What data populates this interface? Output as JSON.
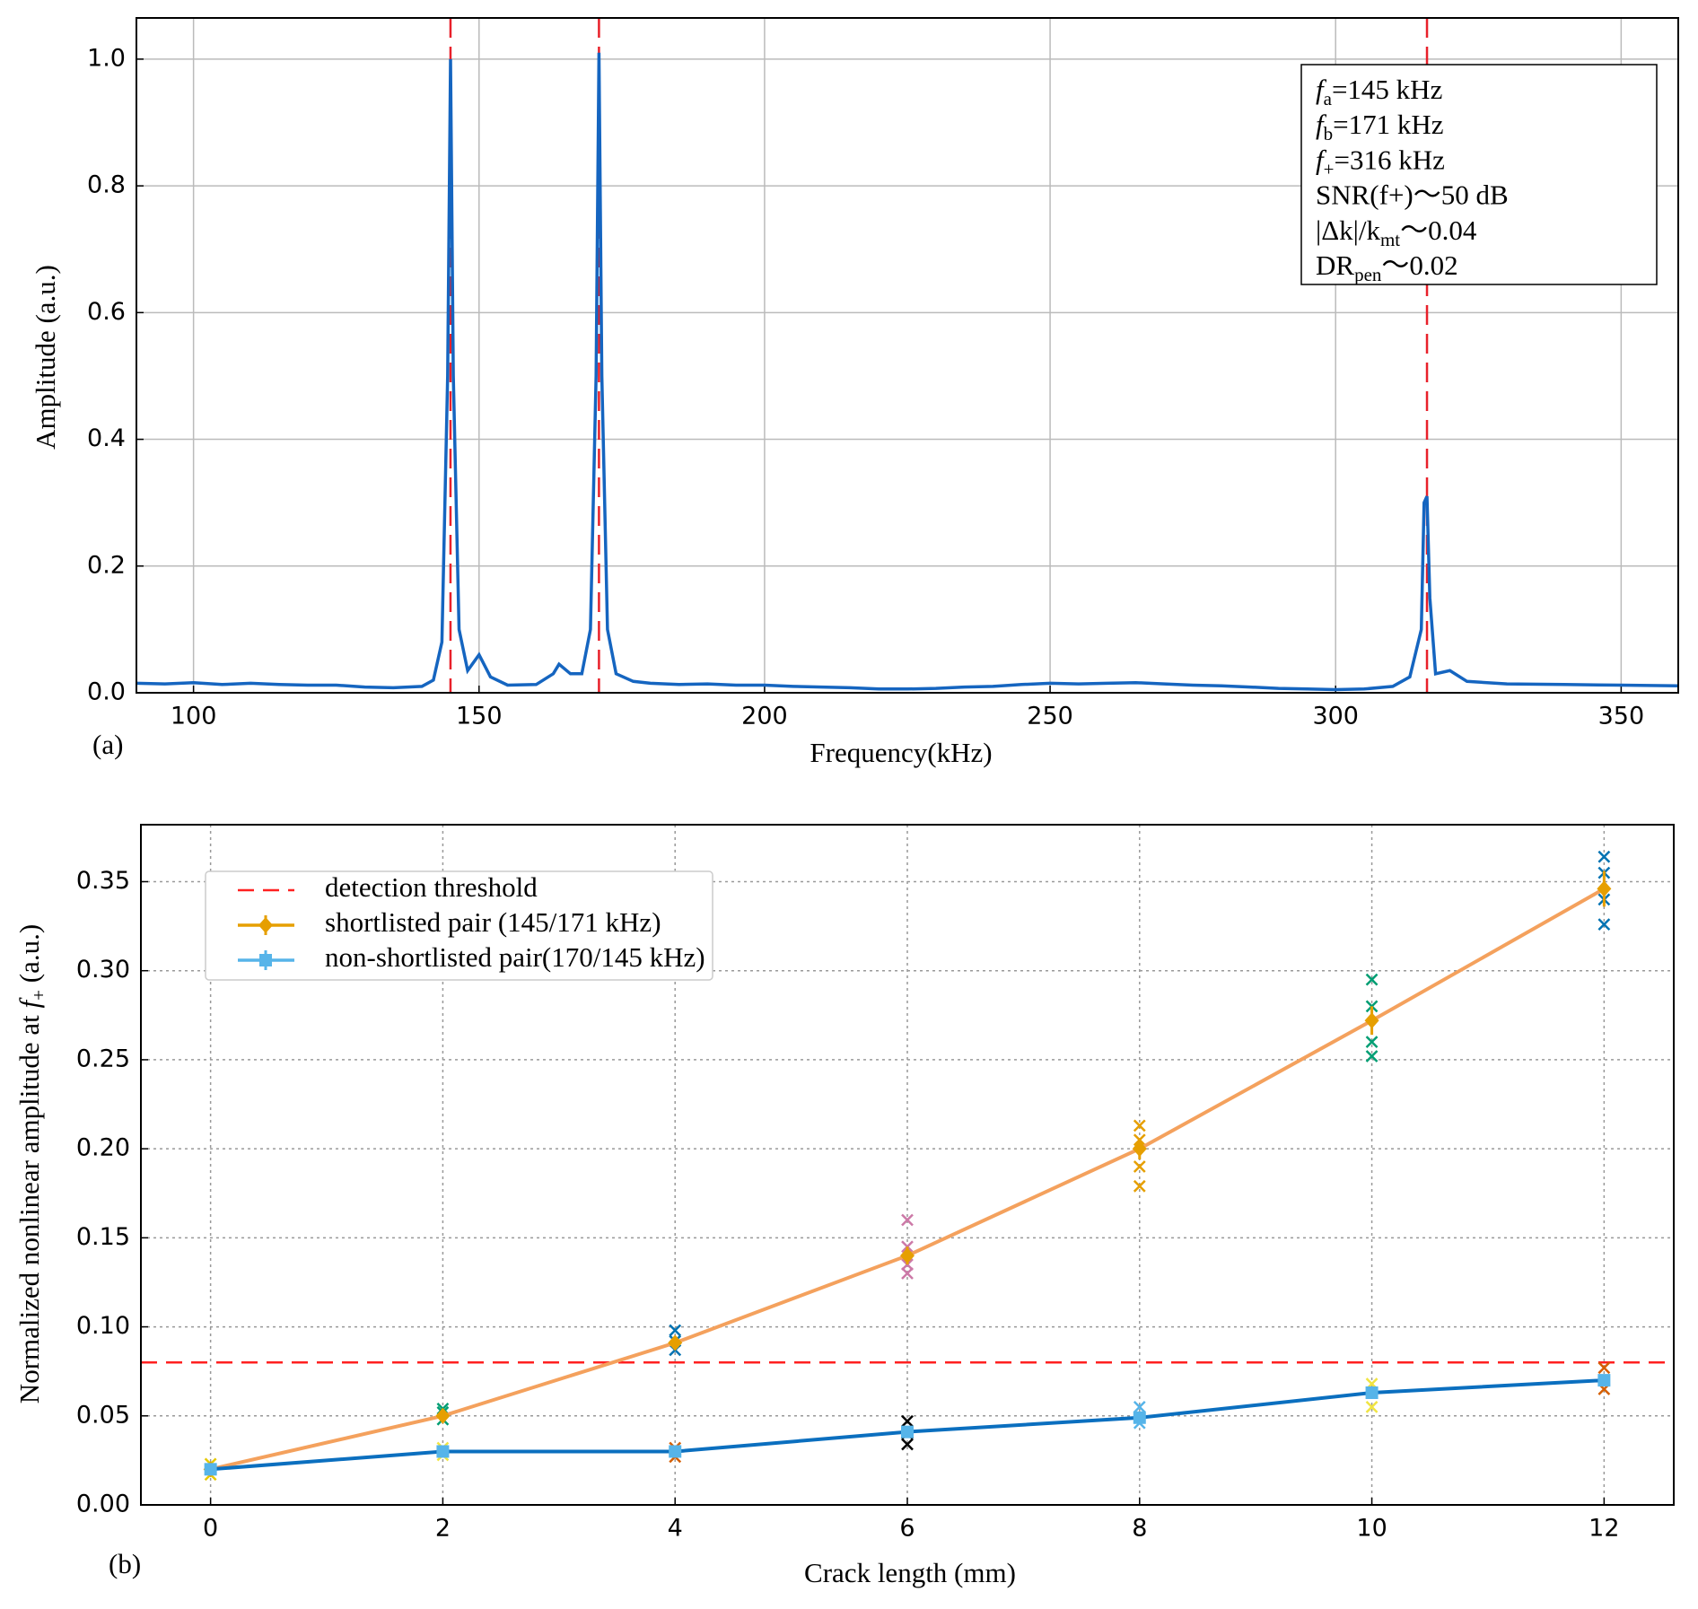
{
  "chart_data": [
    {
      "type": "line",
      "panel_label": "(a)",
      "x_label": "Frequency(kHz)",
      "y_label": "Amplitude (a.u.)",
      "xlim": [
        90,
        360
      ],
      "ylim": [
        0,
        1.065
      ],
      "xticks": [
        100,
        150,
        200,
        250,
        300,
        350
      ],
      "yticks": [
        {
          "value": 0,
          "label": "0.0"
        },
        {
          "value": 0.2,
          "label": "0.2"
        },
        {
          "value": 0.4,
          "label": "0.4"
        },
        {
          "value": 0.6,
          "label": "0.6"
        },
        {
          "value": 0.8,
          "label": "0.8"
        },
        {
          "value": 1,
          "label": "1.0"
        }
      ],
      "grid": "solid",
      "vlines": [
        145,
        171,
        316
      ],
      "vline_color": "#e8202a",
      "series": [
        {
          "color": "#1565c0",
          "x": [
            90,
            95,
            100,
            105,
            110,
            115,
            120,
            125,
            130,
            135,
            140,
            142,
            143.5,
            144.5,
            145,
            145.5,
            146.5,
            148,
            150,
            152,
            155,
            160,
            163,
            164,
            166,
            168,
            169.5,
            170.5,
            171,
            171.5,
            172.5,
            174,
            177,
            180,
            185,
            190,
            195,
            200,
            205,
            210,
            215,
            220,
            225,
            230,
            235,
            240,
            245,
            250,
            255,
            260,
            265,
            270,
            275,
            280,
            285,
            290,
            295,
            300,
            305,
            310,
            313,
            315,
            315.5,
            316,
            316.5,
            317.5,
            320,
            323,
            330,
            340,
            350,
            360
          ],
          "values": [
            0.015,
            0.014,
            0.016,
            0.013,
            0.015,
            0.013,
            0.012,
            0.012,
            0.009,
            0.008,
            0.01,
            0.02,
            0.08,
            0.5,
            1.0,
            0.5,
            0.1,
            0.035,
            0.06,
            0.025,
            0.012,
            0.013,
            0.03,
            0.045,
            0.03,
            0.03,
            0.1,
            0.5,
            1.01,
            0.5,
            0.1,
            0.03,
            0.018,
            0.015,
            0.013,
            0.014,
            0.012,
            0.012,
            0.01,
            0.009,
            0.008,
            0.006,
            0.006,
            0.007,
            0.009,
            0.01,
            0.013,
            0.015,
            0.014,
            0.015,
            0.016,
            0.014,
            0.012,
            0.011,
            0.009,
            0.007,
            0.006,
            0.005,
            0.006,
            0.01,
            0.025,
            0.1,
            0.3,
            0.31,
            0.15,
            0.03,
            0.035,
            0.018,
            0.014,
            0.013,
            0.012,
            0.011
          ]
        }
      ],
      "annotation": [
        [
          {
            "text": "f",
            "kind": "italic"
          },
          {
            "text": "a",
            "kind": "sub"
          },
          {
            "text": "=145 kHz",
            "kind": "plain"
          }
        ],
        [
          {
            "text": "f",
            "kind": "italic"
          },
          {
            "text": "b",
            "kind": "sub"
          },
          {
            "text": "=171 kHz",
            "kind": "plain"
          }
        ],
        [
          {
            "text": "f",
            "kind": "italic"
          },
          {
            "text": "+",
            "kind": "sub"
          },
          {
            "text": "=316 kHz",
            "kind": "plain"
          }
        ],
        [
          {
            "text": "SNR(f+)～50 dB",
            "kind": "plain"
          }
        ],
        [
          {
            "text": "|Δk|/k",
            "kind": "plain"
          },
          {
            "text": "mt",
            "kind": "sub"
          },
          {
            "text": "～0.04",
            "kind": "plain"
          }
        ],
        [
          {
            "text": "DR",
            "kind": "plain"
          },
          {
            "text": "pen",
            "kind": "sub"
          },
          {
            "text": "～0.02",
            "kind": "plain"
          }
        ]
      ]
    },
    {
      "type": "errorbar_line",
      "panel_label": "(b)",
      "x_label": "Crack length (mm)",
      "y_label": [
        {
          "text": "Normalized nonlinear amplitude at ",
          "kind": "plain"
        },
        {
          "text": "f",
          "kind": "italic"
        },
        {
          "text": "+",
          "kind": "sub"
        },
        {
          "text": " (a.u.)",
          "kind": "plain"
        }
      ],
      "xlim": [
        -0.6,
        12.6
      ],
      "ylim": [
        0,
        0.382
      ],
      "xticks": [
        0,
        2,
        4,
        6,
        8,
        10,
        12
      ],
      "yticks": [
        {
          "value": 0,
          "label": "0.00"
        },
        {
          "value": 0.05,
          "label": "0.05"
        },
        {
          "value": 0.1,
          "label": "0.10"
        },
        {
          "value": 0.15,
          "label": "0.15"
        },
        {
          "value": 0.2,
          "label": "0.20"
        },
        {
          "value": 0.25,
          "label": "0.25"
        },
        {
          "value": 0.3,
          "label": "0.30"
        },
        {
          "value": 0.35,
          "label": "0.35"
        }
      ],
      "grid": "dotted",
      "threshold": {
        "name": "detection threshold",
        "value": 0.08,
        "color": "#ff2020"
      },
      "x": [
        0,
        2,
        4,
        6,
        8,
        10,
        12
      ],
      "series": [
        {
          "name": "shortlisted pair (145/171 kHz)",
          "color": "#e69f00",
          "line_color": "#f4a15d",
          "marker": "diamond",
          "values": [
            0.02,
            0.05,
            0.091,
            0.14,
            0.2,
            0.272,
            0.346
          ],
          "errors": [
            0.002,
            0.002,
            0.003,
            0.005,
            0.006,
            0.008,
            0.01
          ]
        },
        {
          "name": "non-shortlisted pair(170/145 kHz)",
          "color": "#56b4e9",
          "line_color": "#0b6fbf",
          "marker": "square",
          "values": [
            0.02,
            0.03,
            0.03,
            0.041,
            0.049,
            0.063,
            0.07
          ],
          "errors": [
            0.002,
            0.002,
            0.002,
            0.002,
            0.003,
            0.003,
            0.003
          ]
        }
      ],
      "trials": {
        "x": [
          0,
          0,
          0,
          2,
          2,
          2,
          2,
          2,
          4,
          4,
          4,
          4,
          4,
          6,
          6,
          6,
          6,
          6,
          6,
          6,
          8,
          8,
          8,
          8,
          8,
          8,
          10,
          10,
          10,
          10,
          10,
          10,
          12,
          12,
          12,
          12,
          12,
          12
        ],
        "values": [
          0.017,
          0.02,
          0.023,
          0.052,
          0.054,
          0.048,
          0.028,
          0.032,
          0.087,
          0.098,
          0.092,
          0.027,
          0.032,
          0.13,
          0.16,
          0.145,
          0.135,
          0.034,
          0.047,
          0.04,
          0.179,
          0.213,
          0.19,
          0.205,
          0.046,
          0.055,
          0.252,
          0.295,
          0.28,
          0.26,
          0.055,
          0.068,
          0.326,
          0.364,
          0.34,
          0.355,
          0.065,
          0.077
        ],
        "colors": [
          "#e6c800",
          "#e6c800",
          "#e6c800",
          "#009e73",
          "#009e73",
          "#009e73",
          "#f0e442",
          "#f0e442",
          "#0072b2",
          "#0072b2",
          "#0072b2",
          "#d55e00",
          "#d55e00",
          "#cc79a7",
          "#cc79a7",
          "#cc79a7",
          "#cc79a7",
          "#000000",
          "#000000",
          "#000000",
          "#e69f00",
          "#e69f00",
          "#e69f00",
          "#e69f00",
          "#56b4e9",
          "#56b4e9",
          "#009e73",
          "#009e73",
          "#009e73",
          "#009e73",
          "#f0e442",
          "#f0e442",
          "#0072b2",
          "#0072b2",
          "#0072b2",
          "#0072b2",
          "#d55e00",
          "#d55e00"
        ]
      },
      "legend": "upper left"
    }
  ]
}
